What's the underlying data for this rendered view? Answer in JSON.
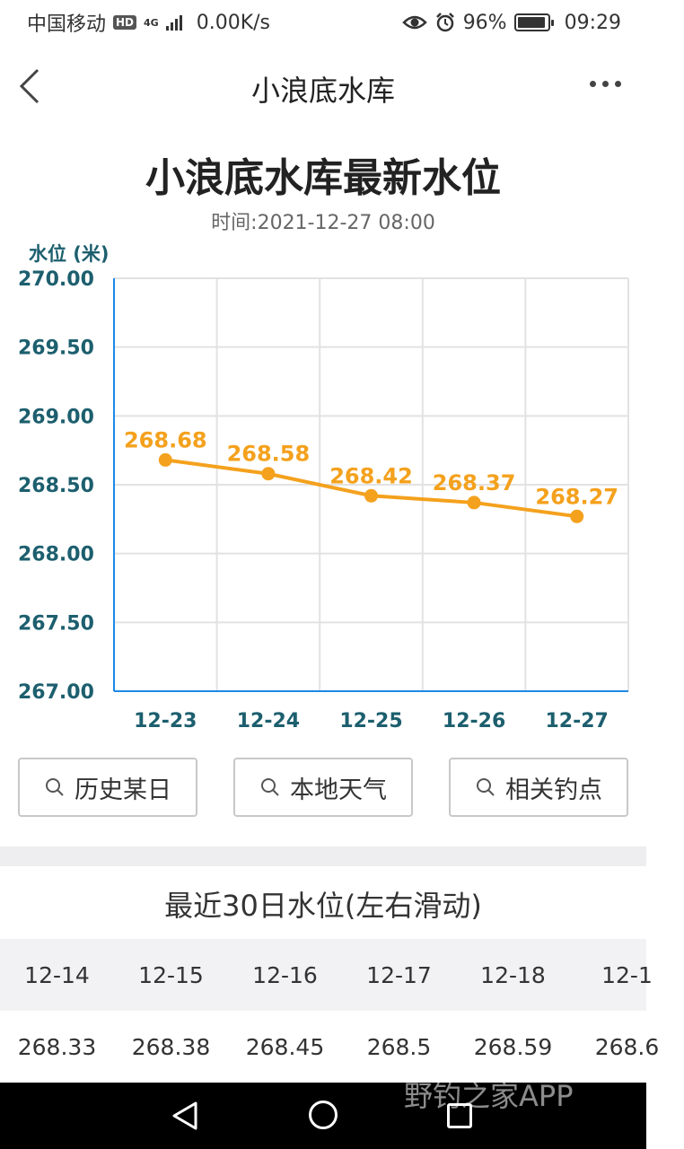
{
  "status_bar": {
    "carrier": "中国移动",
    "hd": "HD",
    "network": "4G",
    "speed": "0.00K/s",
    "battery": "96%",
    "battery_level": 0.96,
    "time": "09:29",
    "icons": [
      "eye-icon",
      "alarm-icon",
      "battery-icon",
      "signal-icon"
    ]
  },
  "app_bar": {
    "title": "小浪底水库",
    "back_icon": "chevron-left-icon",
    "more_icon": "more-dots-icon"
  },
  "header": {
    "title": "小浪底水库最新水位",
    "time": "时间:2021-12-27 08:00"
  },
  "chart_data": {
    "type": "line",
    "ylabel": "水位 (米)",
    "ylim": [
      267.0,
      270.0
    ],
    "yticks": [
      "270.00",
      "269.50",
      "269.00",
      "268.50",
      "268.00",
      "267.50",
      "267.00"
    ],
    "categories": [
      "12-23",
      "12-24",
      "12-25",
      "12-26",
      "12-27"
    ],
    "series": [
      {
        "values": [
          268.68,
          268.58,
          268.42,
          268.37,
          268.27
        ]
      }
    ],
    "data_labels": [
      "268.68",
      "268.58",
      "268.42",
      "268.37",
      "268.27"
    ],
    "grid": true,
    "colors": {
      "line": "#f4a11d",
      "axis": "#1e88e5",
      "tick_text": "#1d5f6e",
      "grid": "#e2e2e2"
    }
  },
  "buttons": [
    {
      "label": "历史某日",
      "icon": "search-icon"
    },
    {
      "label": "本地天气",
      "icon": "search-icon"
    },
    {
      "label": "相关钓点",
      "icon": "search-icon"
    }
  ],
  "recent": {
    "title": "最近30日水位(左右滑动)",
    "dates": [
      "12-14",
      "12-15",
      "12-16",
      "12-17",
      "12-18",
      "12-1"
    ],
    "levels": [
      "268.33",
      "268.38",
      "268.45",
      "268.5",
      "268.59",
      "268.6"
    ]
  },
  "watermark": "野钓之家APP"
}
